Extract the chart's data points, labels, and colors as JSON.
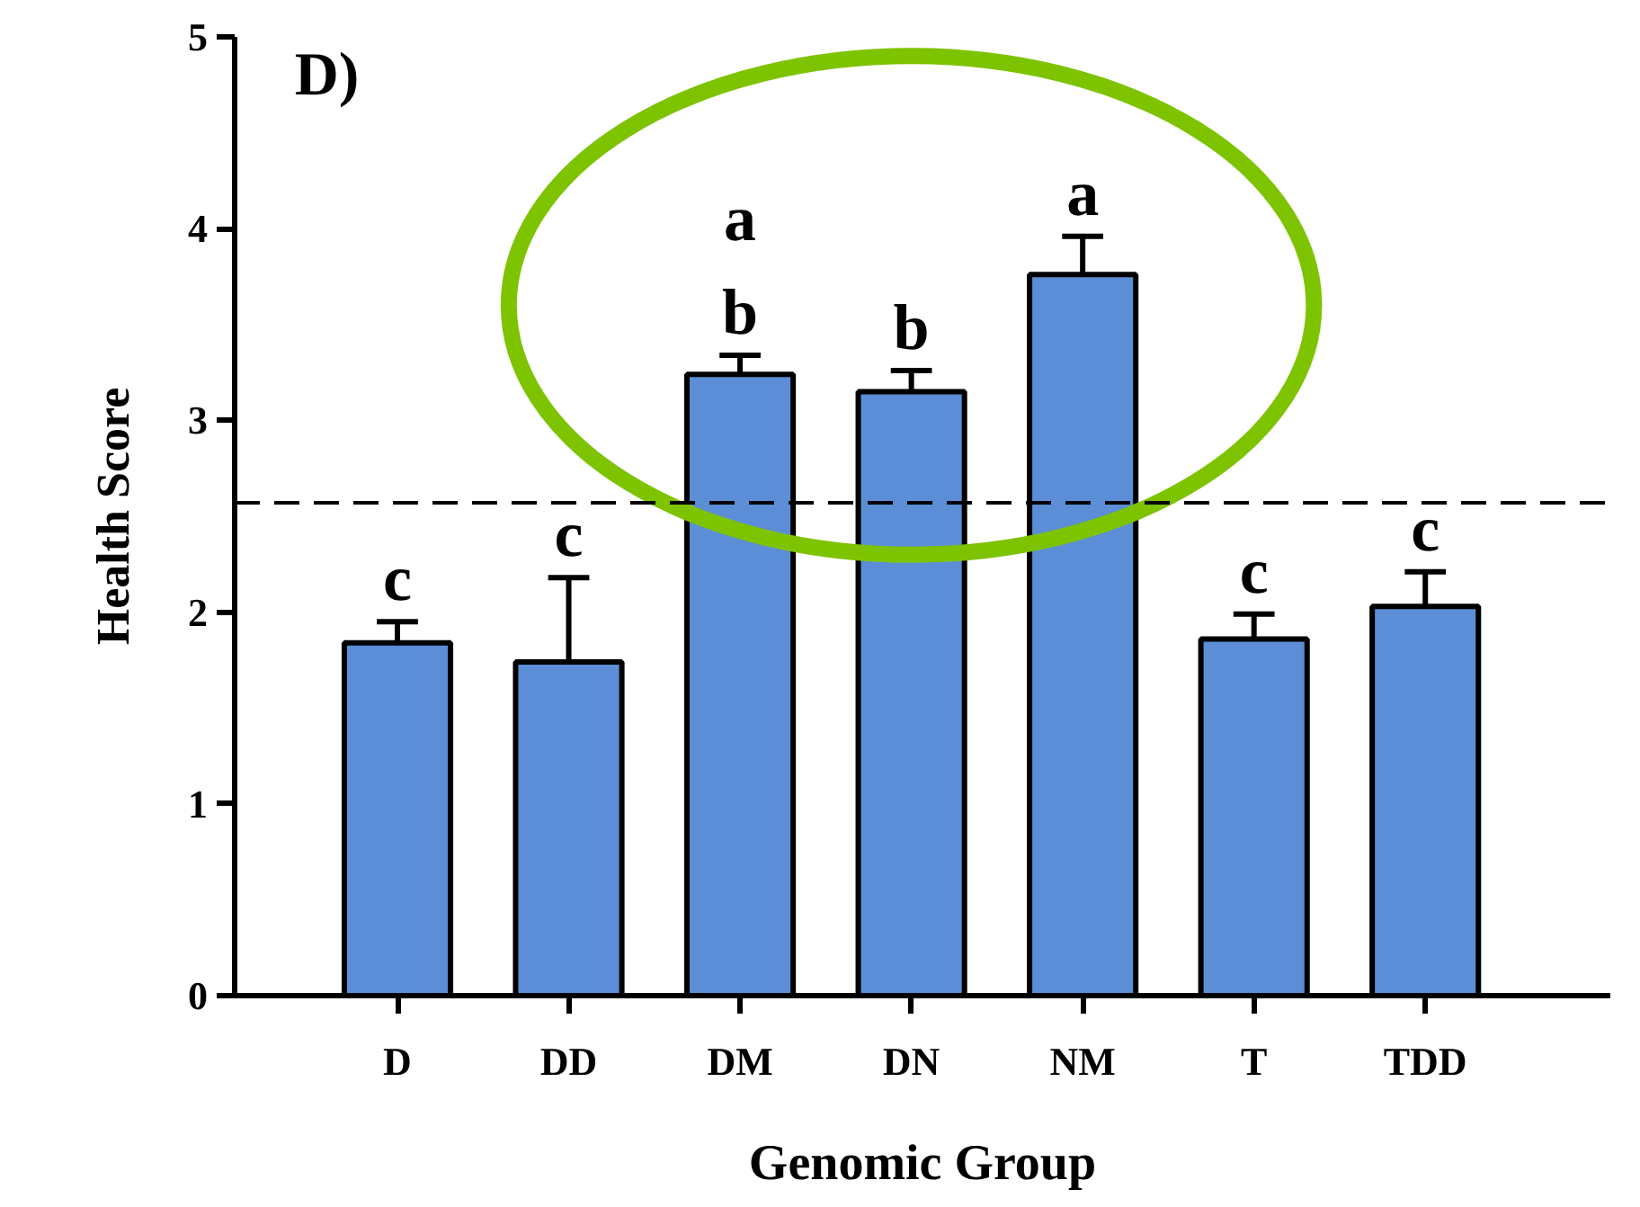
{
  "chart_data": {
    "type": "bar",
    "xlabel": "Genomic Group",
    "ylabel": "Health Score",
    "categories": [
      "D",
      "DD",
      "DM",
      "DN",
      "NM",
      "T",
      "TDD"
    ],
    "values": [
      1.84,
      1.74,
      3.24,
      3.15,
      3.76,
      1.86,
      2.03
    ],
    "color": "#5b8ed6",
    "errors": [
      [
        1.84,
        1.95
      ],
      [
        1.74,
        2.18
      ],
      [
        3.24,
        3.34
      ],
      [
        3.15,
        3.26
      ],
      [
        3.76,
        3.96
      ],
      [
        1.86,
        1.99
      ],
      [
        2.03,
        2.21
      ]
    ],
    "ylim": [
      0,
      5
    ],
    "yticks": [
      0,
      1,
      2,
      3,
      4,
      5
    ],
    "grid": false,
    "ref_lines": [
      {
        "axis": "y",
        "value": 2.57,
        "line_style": "dashed",
        "color": "#000000"
      }
    ],
    "annotations": [
      "D)",
      {
        "text": "c",
        "x": "D",
        "y": 1.95
      },
      {
        "text": "c",
        "x": "DD",
        "y": 2.18
      },
      {
        "text": "a\nb",
        "x": "DM",
        "y": 3.34
      },
      {
        "text": "b",
        "x": "DN",
        "y": 3.26
      },
      {
        "text": "a",
        "x": "NM",
        "y": 3.96
      },
      {
        "text": "c",
        "x": "T",
        "y": 1.99
      },
      {
        "text": "c",
        "x": "TDD",
        "y": 2.21
      }
    ]
  }
}
